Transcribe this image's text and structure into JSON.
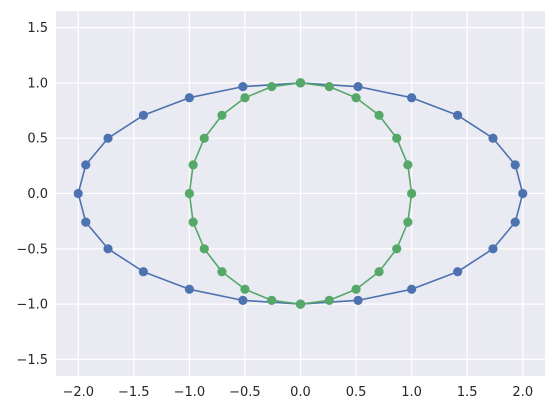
{
  "chart_data": {
    "type": "line",
    "title": "",
    "xlabel": "",
    "ylabel": "",
    "xlim": [
      -2.2,
      2.2
    ],
    "ylim": [
      -1.65,
      1.65
    ],
    "xticks": [
      -2.0,
      -1.5,
      -1.0,
      -0.5,
      0.0,
      0.5,
      1.0,
      1.5,
      2.0
    ],
    "xtick_labels": [
      "−2.0",
      "−1.5",
      "−1.0",
      "−0.5",
      "0.0",
      "0.5",
      "1.0",
      "1.5",
      "2.0"
    ],
    "yticks": [
      -1.5,
      -1.0,
      -0.5,
      0.0,
      0.5,
      1.0,
      1.5
    ],
    "ytick_labels": [
      "−1.5",
      "−1.0",
      "−0.5",
      "0.0",
      "0.5",
      "1.0",
      "1.5"
    ],
    "grid": true,
    "background": "#eaeaf2",
    "markers": true,
    "series": [
      {
        "color": "#4c72b0",
        "x": [
          0.0,
          0.518,
          1.0,
          1.414,
          1.732,
          1.932,
          2.0,
          1.932,
          1.732,
          1.414,
          1.0,
          0.518,
          0.0,
          -0.518,
          -1.0,
          -1.414,
          -1.732,
          -1.932,
          -2.0,
          -1.932,
          -1.732,
          -1.414,
          -1.0,
          -0.518,
          0.0
        ],
        "y": [
          1.0,
          0.966,
          0.866,
          0.707,
          0.5,
          0.259,
          0.0,
          -0.259,
          -0.5,
          -0.707,
          -0.866,
          -0.966,
          -1.0,
          -0.966,
          -0.866,
          -0.707,
          -0.5,
          -0.259,
          0.0,
          0.259,
          0.5,
          0.707,
          0.866,
          0.966,
          1.0
        ]
      },
      {
        "color": "#55a868",
        "x": [
          0.0,
          0.259,
          0.5,
          0.707,
          0.866,
          0.966,
          1.0,
          0.966,
          0.866,
          0.707,
          0.5,
          0.259,
          0.0,
          -0.259,
          -0.5,
          -0.707,
          -0.866,
          -0.966,
          -1.0,
          -0.966,
          -0.866,
          -0.707,
          -0.5,
          -0.259,
          0.0
        ],
        "y": [
          1.0,
          0.966,
          0.866,
          0.707,
          0.5,
          0.259,
          0.0,
          -0.259,
          -0.5,
          -0.707,
          -0.866,
          -0.966,
          -1.0,
          -0.966,
          -0.866,
          -0.707,
          -0.5,
          -0.259,
          0.0,
          0.259,
          0.5,
          0.707,
          0.866,
          0.966,
          1.0
        ]
      }
    ]
  }
}
